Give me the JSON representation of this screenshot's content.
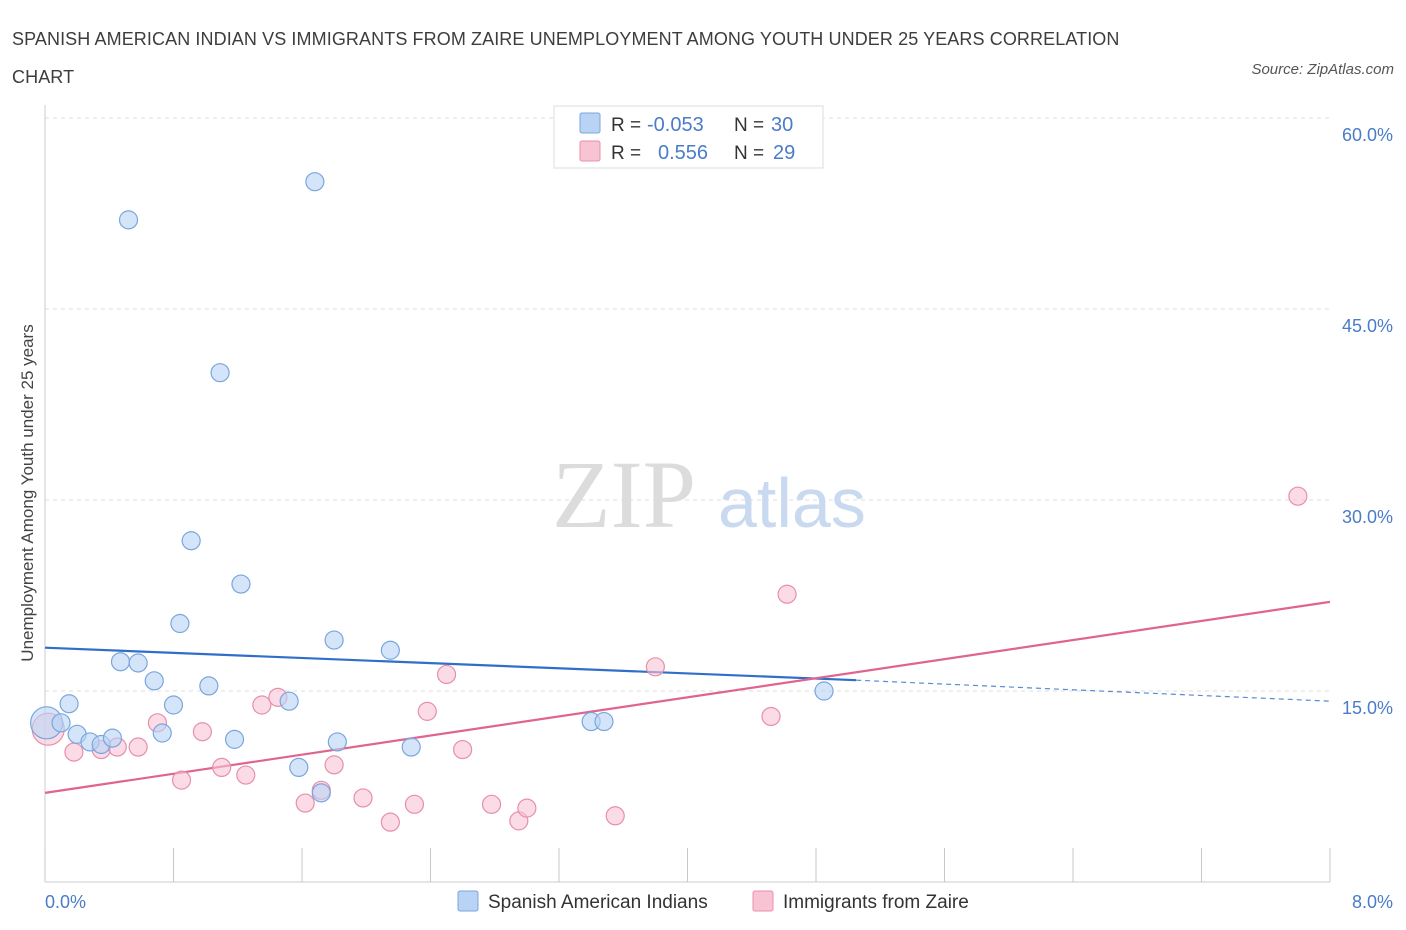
{
  "title": "SPANISH AMERICAN INDIAN VS IMMIGRANTS FROM ZAIRE UNEMPLOYMENT AMONG YOUTH UNDER 25 YEARS CORRELATION CHART",
  "source": "Source: ZipAtlas.com",
  "watermark": {
    "zip": "ZIP",
    "atlas": "atlas"
  },
  "legend": [
    {
      "r_label": "R =",
      "r_value": "-0.053",
      "n_label": "N =",
      "n_value": "30",
      "color": "#b9d3f5"
    },
    {
      "r_label": "R =",
      "r_value": "0.556",
      "n_label": "N =",
      "n_value": "29",
      "color": "#f8c3d3"
    }
  ],
  "chart_data": {
    "type": "scatter",
    "ylabel": "Unemployment Among Youth under 25 years",
    "xlim": [
      0,
      8
    ],
    "ylim": [
      0,
      60
    ],
    "y_ticks": [
      15,
      30,
      45,
      60
    ],
    "y_tick_labels": [
      "15.0%",
      "30.0%",
      "45.0%",
      "60.0%"
    ],
    "x_tick_labels": [
      "0.0%",
      "8.0%"
    ],
    "grid": true,
    "series": [
      {
        "name": "Spanish American Indians",
        "color": "#b9d3f5",
        "stroke": "#7aa6dd",
        "line_color": "#2f6fc9",
        "trend": {
          "x0": 0,
          "y0": 18.4,
          "x1": 5.05,
          "y1": 15.85,
          "dash_to_x": 8,
          "dash_to_y": 14.2
        },
        "points": [
          [
            0.01,
            12.5
          ],
          [
            0.1,
            12.5
          ],
          [
            0.15,
            14.0
          ],
          [
            0.2,
            11.6
          ],
          [
            0.28,
            11.0
          ],
          [
            0.35,
            10.8
          ],
          [
            0.42,
            11.3
          ],
          [
            0.47,
            17.3
          ],
          [
            0.58,
            17.2
          ],
          [
            0.68,
            15.8
          ],
          [
            0.73,
            11.7
          ],
          [
            0.8,
            13.9
          ],
          [
            0.84,
            20.3
          ],
          [
            0.91,
            26.8
          ],
          [
            1.02,
            15.4
          ],
          [
            1.18,
            11.2
          ],
          [
            1.22,
            23.4
          ],
          [
            1.52,
            14.2
          ],
          [
            1.58,
            9.0
          ],
          [
            1.72,
            7.0
          ],
          [
            1.8,
            19.0
          ],
          [
            1.82,
            11.0
          ],
          [
            2.15,
            18.2
          ],
          [
            2.28,
            10.6
          ],
          [
            3.4,
            12.6
          ],
          [
            3.48,
            12.6
          ],
          [
            4.85,
            15.0
          ],
          [
            0.52,
            52.0
          ],
          [
            1.09,
            40.0
          ],
          [
            1.68,
            55.0
          ]
        ]
      },
      {
        "name": "Immigrants from Zaire",
        "color": "#f8c3d3",
        "stroke": "#e78fab",
        "line_color": "#e0648f",
        "trend": {
          "x0": 0,
          "y0": 7.0,
          "x1": 8,
          "y1": 22.0
        },
        "points": [
          [
            0.02,
            12.0
          ],
          [
            0.18,
            10.2
          ],
          [
            0.35,
            10.4
          ],
          [
            0.45,
            10.6
          ],
          [
            0.58,
            10.6
          ],
          [
            0.7,
            12.5
          ],
          [
            0.85,
            8.0
          ],
          [
            0.98,
            11.8
          ],
          [
            1.1,
            9.0
          ],
          [
            1.25,
            8.4
          ],
          [
            1.35,
            13.9
          ],
          [
            1.45,
            14.5
          ],
          [
            1.62,
            6.2
          ],
          [
            1.72,
            7.2
          ],
          [
            1.8,
            9.2
          ],
          [
            1.98,
            6.6
          ],
          [
            2.15,
            4.7
          ],
          [
            2.3,
            6.1
          ],
          [
            2.38,
            13.4
          ],
          [
            2.5,
            16.3
          ],
          [
            2.6,
            10.4
          ],
          [
            2.78,
            6.1
          ],
          [
            2.95,
            4.8
          ],
          [
            3.0,
            5.8
          ],
          [
            3.55,
            5.2
          ],
          [
            3.8,
            16.9
          ],
          [
            4.52,
            13.0
          ],
          [
            4.62,
            22.6
          ],
          [
            7.8,
            30.3
          ]
        ]
      }
    ]
  }
}
